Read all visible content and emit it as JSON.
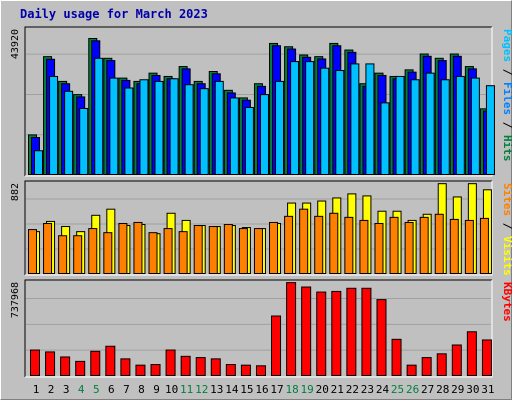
{
  "chart_data": {
    "type": "bar",
    "title": "Daily usage for March 2023",
    "categories": [
      "1",
      "2",
      "3",
      "4",
      "5",
      "6",
      "7",
      "8",
      "9",
      "10",
      "11",
      "12",
      "13",
      "14",
      "15",
      "16",
      "17",
      "18",
      "19",
      "20",
      "21",
      "22",
      "23",
      "24",
      "25",
      "26",
      "27",
      "28",
      "29",
      "30",
      "31"
    ],
    "weekend_days": [
      "4",
      "5",
      "11",
      "12",
      "18",
      "19",
      "25",
      "26"
    ],
    "panels": [
      {
        "id": "top",
        "ymax": 43920,
        "ymax_label": "43920",
        "legend": [
          {
            "text": "Hits",
            "color": "#008040"
          },
          {
            "text": " / ",
            "color": "#000000"
          },
          {
            "text": "Files",
            "color": "#0080ff"
          },
          {
            "text": " / ",
            "color": "#000000"
          },
          {
            "text": "Pages",
            "color": "#00c0ff"
          }
        ],
        "series": [
          {
            "name": "Hits",
            "color": "#008040",
            "values": [
              12300,
              36000,
              28500,
              24500,
              41500,
              35500,
              29500,
              28500,
              31000,
              30000,
              33000,
              28500,
              31500,
              25800,
              23500,
              27800,
              40000,
              39000,
              36500,
              36000,
              40000,
              38000,
              27800,
              31000,
              30000,
              32000,
              36800,
              35500,
              36800,
              33000,
              20200
            ]
          },
          {
            "name": "Files",
            "color": "#0000ff",
            "values": [
              11500,
              35200,
              27800,
              23800,
              40800,
              34800,
              28800,
              27800,
              30300,
              29300,
              32300,
              27800,
              30800,
              25000,
              22800,
              27000,
              39300,
              38300,
              35800,
              35300,
              39300,
              37300,
              27000,
              30300,
              29300,
              31300,
              36100,
              34800,
              36100,
              32300,
              19500
            ]
          },
          {
            "name": "Pages",
            "color": "#00c0ff",
            "values": [
              7500,
              30000,
              25500,
              20300,
              35500,
              29500,
              26500,
              29000,
              28500,
              29300,
              27500,
              26300,
              28500,
              23500,
              20600,
              24500,
              28500,
              34500,
              34500,
              32500,
              31800,
              33800,
              33800,
              22000,
              30000,
              29000,
              31000,
              29000,
              30000,
              29500,
              27200
            ]
          }
        ]
      },
      {
        "id": "middle",
        "ymax": 882,
        "ymax_label": "882",
        "legend": [
          {
            "text": "Visits",
            "color": "#ffff00"
          },
          {
            "text": " / ",
            "color": "#000000"
          },
          {
            "text": "Sites",
            "color": "#ff8000"
          }
        ],
        "series": [
          {
            "name": "Visits",
            "color": "#ffff00",
            "values": [
              420,
              520,
              470,
              420,
              580,
              640,
              480,
              490,
              400,
              600,
              530,
              480,
              470,
              480,
              460,
              450,
              500,
              700,
              700,
              720,
              750,
              790,
              770,
              620,
              620,
              530,
              590,
              890,
              760,
              890,
              830
            ]
          },
          {
            "name": "Sites",
            "color": "#ff8000",
            "values": [
              440,
              500,
              380,
              380,
              450,
              410,
              500,
              510,
              410,
              450,
              420,
              480,
              470,
              490,
              450,
              450,
              510,
              570,
              640,
              570,
              600,
              560,
              530,
              500,
              560,
              510,
              560,
              590,
              540,
              530,
              550
            ]
          }
        ]
      },
      {
        "id": "bottom",
        "ymax": 737968,
        "ymax_label": "737968",
        "legend": [
          {
            "text": "KBytes",
            "color": "#ff0000"
          }
        ],
        "series": [
          {
            "name": "KBytes",
            "color": "#ff0000",
            "values": [
              210000,
              195000,
              155000,
              120000,
              200000,
              240000,
              140000,
              90000,
              95000,
              210000,
              160000,
              150000,
              140000,
              95000,
              90000,
              85000,
              480000,
              745000,
              710000,
              670000,
              675000,
              700000,
              700000,
              610000,
              295000,
              90000,
              150000,
              180000,
              250000,
              355000,
              290000
            ]
          }
        ]
      }
    ]
  }
}
